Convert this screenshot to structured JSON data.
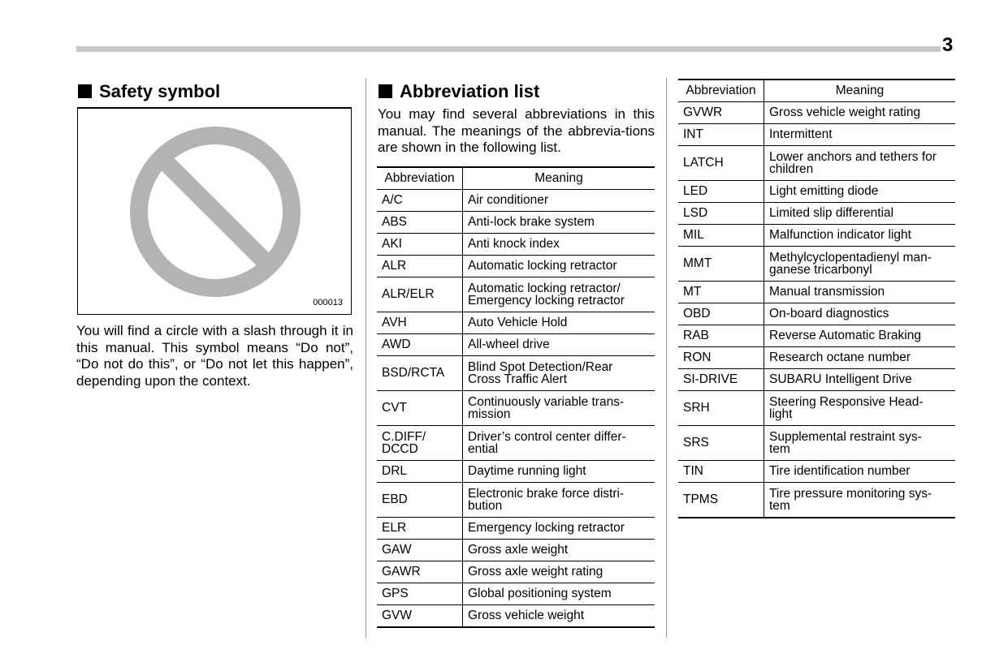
{
  "page_number": "3",
  "safety": {
    "title": "Safety symbol",
    "figure_code": "000013",
    "icon": "prohibition-circle-slash",
    "text": "You will find a circle with a slash through it in this manual. This symbol means “Do not”, “Do not do this”, or “Do not let this happen”, depending upon the context."
  },
  "abbrev": {
    "title": "Abbreviation list",
    "intro": "You may find several abbreviations in this manual. The meanings of the abbrevia-tions are shown in the following list.",
    "columns": [
      "Abbreviation",
      "Meaning"
    ],
    "table1": [
      [
        "A/C",
        "Air conditioner"
      ],
      [
        "ABS",
        "Anti-lock brake system"
      ],
      [
        "AKI",
        "Anti knock index"
      ],
      [
        "ALR",
        "Automatic locking retractor"
      ],
      [
        "ALR/ELR",
        "Automatic locking retractor/\nEmergency locking retractor"
      ],
      [
        "AVH",
        "Auto Vehicle Hold"
      ],
      [
        "AWD",
        "All-wheel drive"
      ],
      [
        "BSD/RCTA",
        "Blind Spot Detection/Rear\nCross Traffic Alert"
      ],
      [
        "CVT",
        "Continuously variable trans-\nmission"
      ],
      [
        "C.DIFF/\nDCCD",
        "Driver’s control center differ-\nential"
      ],
      [
        "DRL",
        "Daytime running light"
      ],
      [
        "EBD",
        "Electronic brake force distri-\nbution"
      ],
      [
        "ELR",
        "Emergency locking retractor"
      ],
      [
        "GAW",
        "Gross axle weight"
      ],
      [
        "GAWR",
        "Gross axle weight rating"
      ],
      [
        "GPS",
        "Global positioning system"
      ],
      [
        "GVW",
        "Gross vehicle weight"
      ]
    ],
    "table2": [
      [
        "GVWR",
        "Gross vehicle weight rating"
      ],
      [
        "INT",
        "Intermittent"
      ],
      [
        "LATCH",
        "Lower anchors and tethers for\nchildren"
      ],
      [
        "LED",
        "Light emitting diode"
      ],
      [
        "LSD",
        "Limited slip differential"
      ],
      [
        "MIL",
        "Malfunction indicator light"
      ],
      [
        "MMT",
        "Methylcyclopentadienyl man-\nganese tricarbonyl"
      ],
      [
        "MT",
        "Manual transmission"
      ],
      [
        "OBD",
        "On-board diagnostics"
      ],
      [
        "RAB",
        "Reverse Automatic Braking"
      ],
      [
        "RON",
        "Research octane number"
      ],
      [
        "SI-DRIVE",
        "SUBARU Intelligent Drive"
      ],
      [
        "SRH",
        "Steering Responsive Head-\nlight"
      ],
      [
        "SRS",
        "Supplemental restraint sys-\ntem"
      ],
      [
        "TIN",
        "Tire identification number"
      ],
      [
        "TPMS",
        "Tire pressure monitoring sys-\ntem"
      ]
    ]
  }
}
